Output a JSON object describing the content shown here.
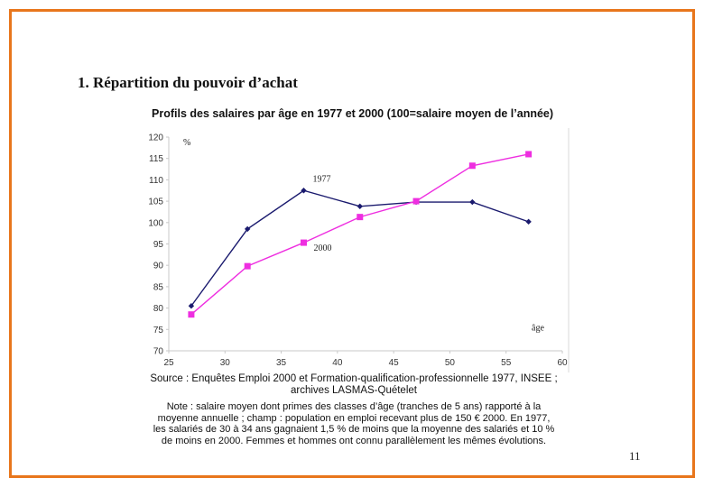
{
  "slide": {
    "section_title": "1. Répartition du pouvoir d’achat",
    "page_number": "11",
    "frame_color": "#e8761c"
  },
  "chart_data": {
    "type": "line",
    "title": "Profils des salaires par âge en 1977 et 2000 (100=salaire moyen de l’année)",
    "xlabel": "âge",
    "ylabel": "%",
    "xlim": [
      25,
      60
    ],
    "ylim": [
      70,
      120
    ],
    "x_ticks": [
      25,
      30,
      35,
      40,
      45,
      50,
      55,
      60
    ],
    "y_ticks": [
      70,
      75,
      80,
      85,
      90,
      95,
      100,
      105,
      110,
      115,
      120
    ],
    "grid": false,
    "series": [
      {
        "name": "1977",
        "color": "#1a1a6e",
        "marker": "diamond",
        "x": [
          27,
          32,
          37,
          42,
          47,
          52,
          57
        ],
        "values": [
          80.5,
          98.5,
          107.5,
          103.8,
          104.8,
          104.8,
          100.2
        ]
      },
      {
        "name": "2000",
        "color": "#ee2ee0",
        "marker": "square",
        "x": [
          27,
          32,
          37,
          42,
          47,
          52,
          57
        ],
        "values": [
          78.5,
          89.8,
          95.3,
          101.3,
          105.0,
          113.3,
          116.0
        ]
      }
    ]
  },
  "caption": {
    "source_line1": "Source : Enquêtes Emploi 2000 et Formation-qualification-professionnelle 1977, INSEE ;",
    "source_line2": "archives LASMAS-Quételet",
    "note_line1": "Note : salaire moyen dont primes des classes d’âge (tranches de 5 ans) rapporté à la",
    "note_line2": "moyenne annuelle ; champ : population en emploi recevant plus de 150 € 2000. En 1977,",
    "note_line3": "les salariés de 30 à 34 ans gagnaient 1,5 % de moins que la moyenne des salariés et 10 %",
    "note_line4": "de moins en 2000. Femmes et hommes ont connu parallèlement les mêmes évolutions."
  }
}
